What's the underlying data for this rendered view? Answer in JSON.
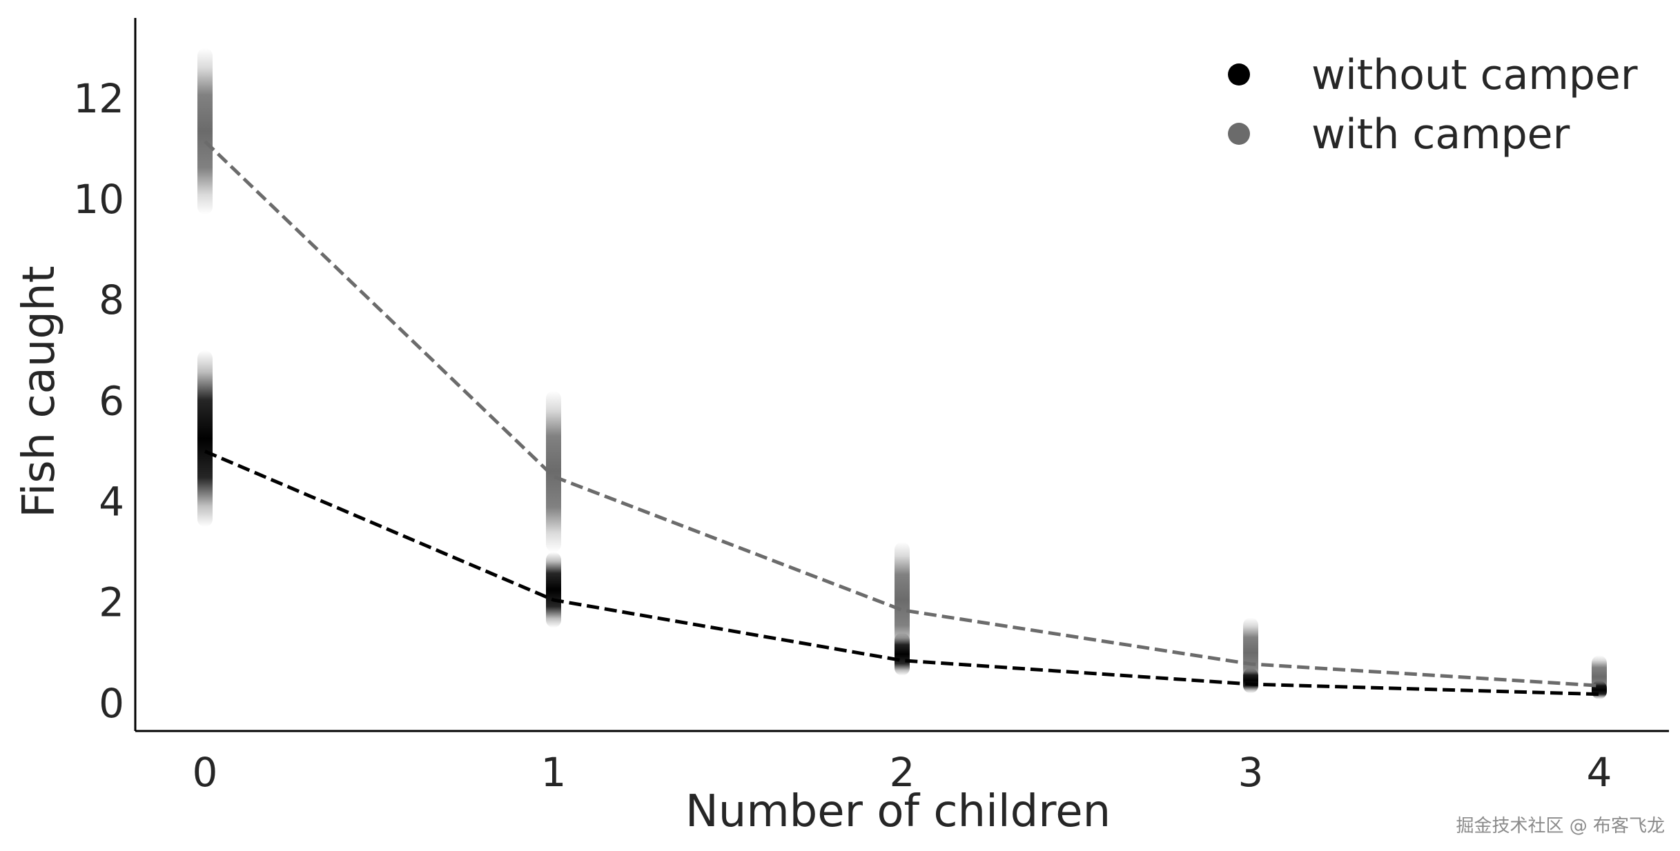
{
  "chart_data": {
    "type": "scatter",
    "xlabel": "Number of children",
    "ylabel": "Fish caught",
    "xlim": [
      -0.2,
      4.2
    ],
    "ylim": [
      -0.55,
      13.6
    ],
    "x_ticks": [
      "0",
      "1",
      "2",
      "3",
      "4"
    ],
    "y_ticks": [
      "0",
      "2",
      "4",
      "6",
      "8",
      "10",
      "12"
    ],
    "grid": false,
    "legend_position": "top-right",
    "series": [
      {
        "name": "without camper",
        "color": "#000000",
        "x": [
          0,
          1,
          2,
          3,
          4
        ],
        "mean": [
          5.0,
          2.05,
          0.85,
          0.38,
          0.18
        ],
        "spread_low": [
          3.5,
          1.5,
          0.55,
          0.2,
          0.08
        ],
        "spread_high": [
          7.0,
          3.0,
          1.4,
          0.7,
          0.45
        ]
      },
      {
        "name": "with camper",
        "color": "#6b6b6b",
        "x": [
          0,
          1,
          2,
          3,
          4
        ],
        "mean": [
          11.15,
          4.5,
          1.85,
          0.78,
          0.35
        ],
        "spread_low": [
          9.7,
          3.0,
          0.9,
          0.3,
          0.1
        ],
        "spread_high": [
          13.0,
          6.2,
          3.2,
          1.7,
          0.95
        ]
      }
    ]
  },
  "watermark": "掘金技术社区 @ 布客飞龙"
}
